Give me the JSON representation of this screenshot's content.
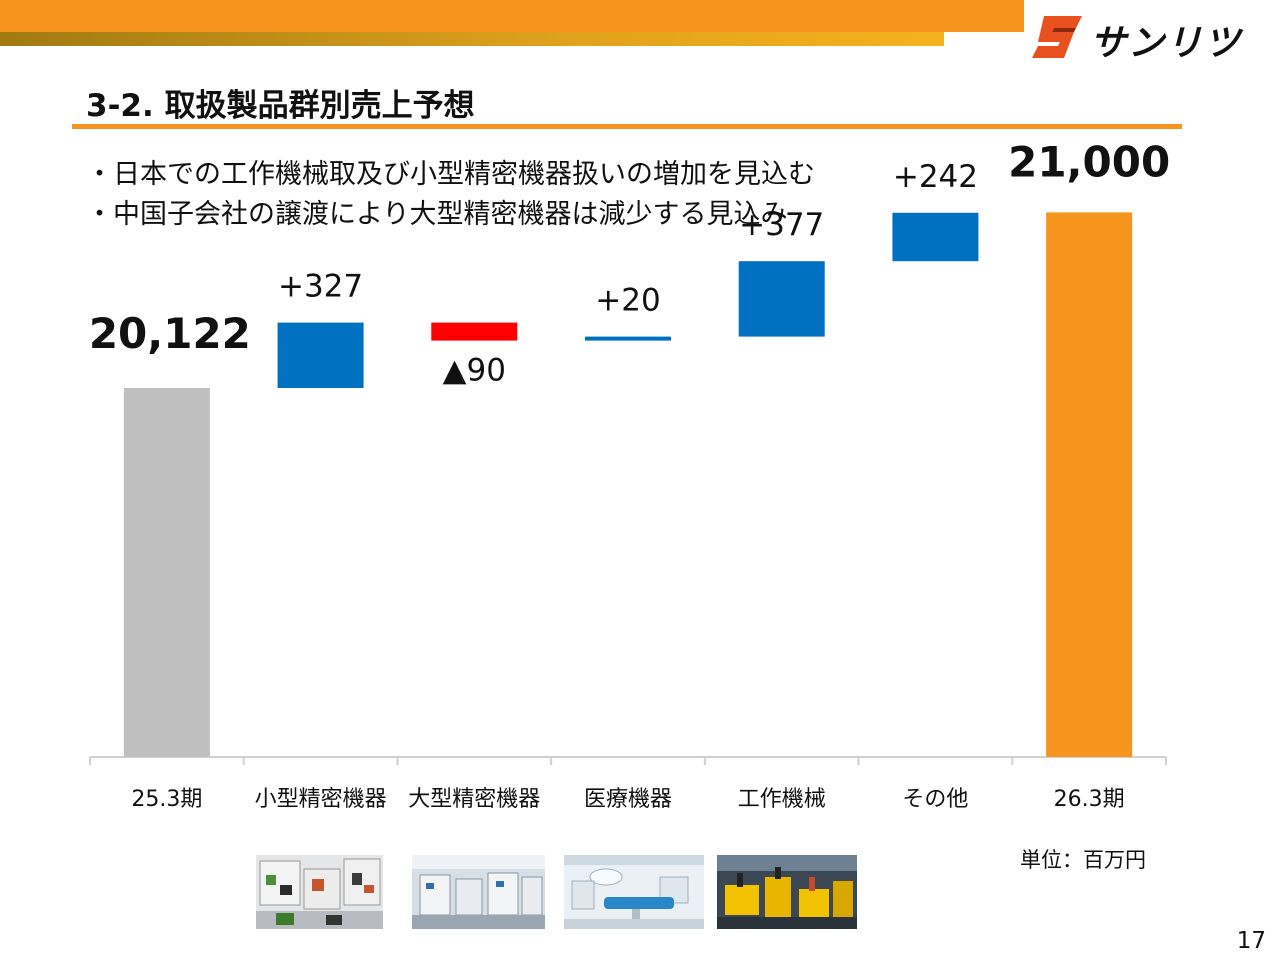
{
  "header": {
    "logo_text": "サンリツ",
    "title": "3-2. 取扱製品群別売上予想"
  },
  "bullets": [
    "・日本での工作機械取及び小型精密機器扱いの増加を見込む",
    "・中国子会社の譲渡により大型精密機器は減少する見込み"
  ],
  "chart_data": {
    "type": "bar",
    "subtype": "waterfall",
    "categories": [
      "25.3期",
      "小型精密機器",
      "大型精密機器",
      "医療機器",
      "工作機械",
      "その他",
      "26.3期"
    ],
    "values": [
      20122,
      327,
      -90,
      20,
      377,
      242,
      21000
    ],
    "kinds": [
      "total",
      "delta",
      "delta",
      "delta",
      "delta",
      "delta",
      "total"
    ],
    "value_labels": [
      "20,122",
      "+327",
      "▲90",
      "+20",
      "+377",
      "+242",
      "21,000"
    ],
    "unit_label": "単位：百万円",
    "colors": {
      "start_total": "#bfbfbf",
      "end_total": "#f7941d",
      "increase": "#0070c0",
      "decrease": "#ff0000"
    }
  },
  "photos": [
    {
      "name": "small-precision-equipment-photo"
    },
    {
      "name": "large-precision-equipment-photo"
    },
    {
      "name": "medical-equipment-photo"
    },
    {
      "name": "machine-tools-photo"
    }
  ],
  "page_number": "17"
}
